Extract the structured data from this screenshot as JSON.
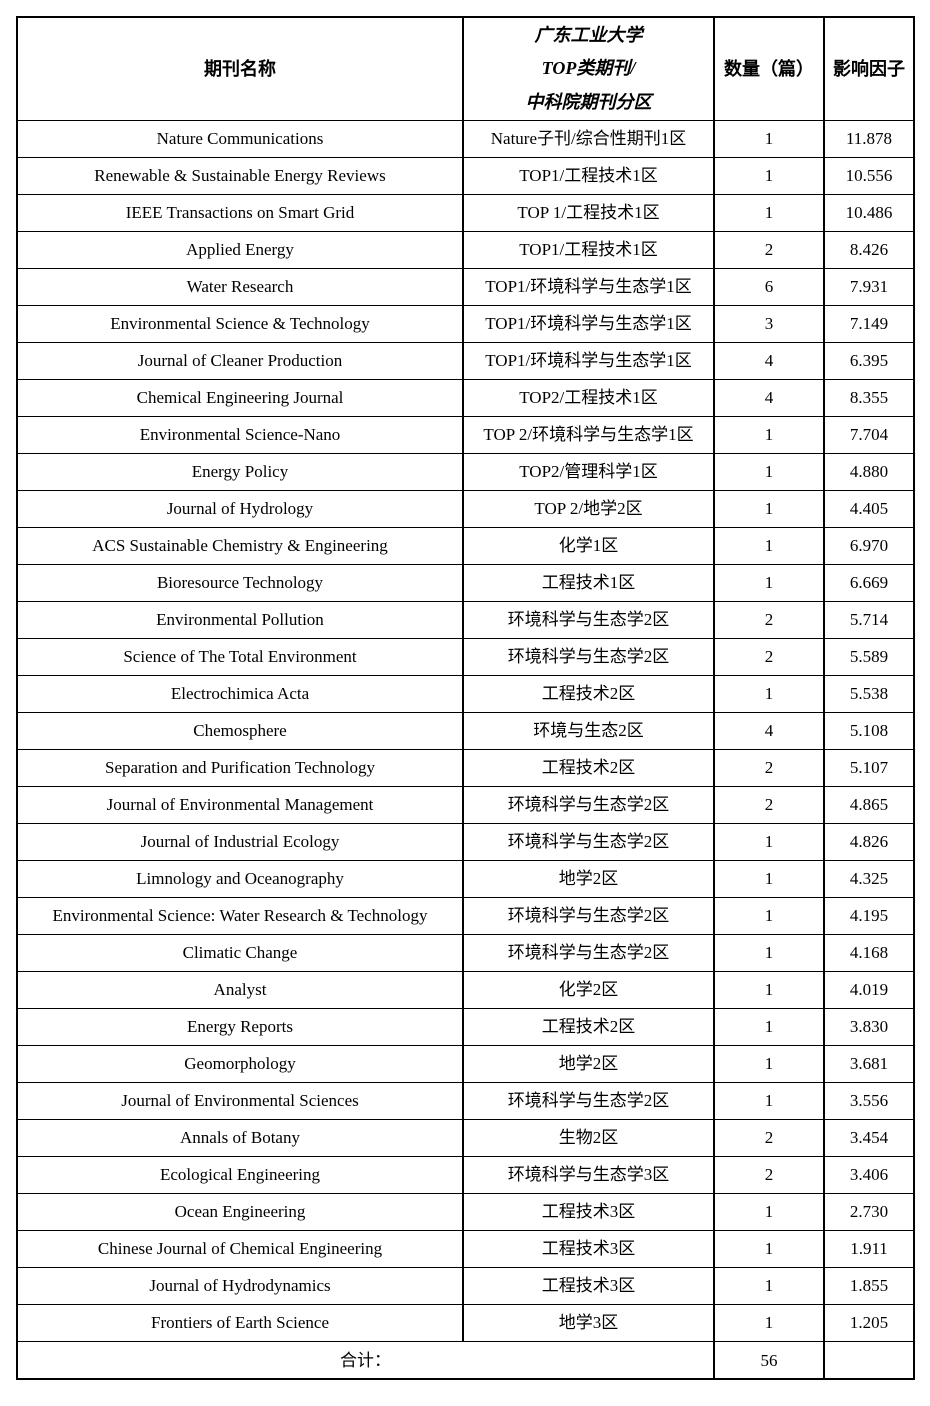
{
  "table": {
    "header": {
      "col_name": "期刊名称",
      "col_category_lines": [
        "广东工业大学",
        "TOP类期刊/",
        "中科院期刊分区"
      ],
      "col_count": "数量（篇）",
      "col_impact": "影响因子"
    },
    "rows": [
      {
        "name": "Nature Communications",
        "category": "Nature子刊/综合性期刊1区",
        "count": "1",
        "impact": "11.878"
      },
      {
        "name": "Renewable & Sustainable Energy Reviews",
        "category": "TOP1/工程技术1区",
        "count": "1",
        "impact": "10.556"
      },
      {
        "name": "IEEE Transactions on Smart Grid",
        "category": "TOP 1/工程技术1区",
        "count": "1",
        "impact": "10.486"
      },
      {
        "name": "Applied Energy",
        "category": "TOP1/工程技术1区",
        "count": "2",
        "impact": "8.426"
      },
      {
        "name": "Water Research",
        "category": "TOP1/环境科学与生态学1区",
        "count": "6",
        "impact": "7.931"
      },
      {
        "name": "Environmental Science & Technology",
        "category": "TOP1/环境科学与生态学1区",
        "count": "3",
        "impact": "7.149"
      },
      {
        "name": "Journal of Cleaner Production",
        "category": "TOP1/环境科学与生态学1区",
        "count": "4",
        "impact": "6.395"
      },
      {
        "name": "Chemical Engineering Journal",
        "category": "TOP2/工程技术1区",
        "count": "4",
        "impact": "8.355"
      },
      {
        "name": "Environmental Science-Nano",
        "category": "TOP 2/环境科学与生态学1区",
        "count": "1",
        "impact": "7.704"
      },
      {
        "name": "Energy Policy",
        "category": "TOP2/管理科学1区",
        "count": "1",
        "impact": "4.880"
      },
      {
        "name": "Journal of Hydrology",
        "category": "TOP 2/地学2区",
        "count": "1",
        "impact": "4.405"
      },
      {
        "name": "ACS Sustainable Chemistry & Engineering",
        "category": "化学1区",
        "count": "1",
        "impact": "6.970"
      },
      {
        "name": "Bioresource Technology",
        "category": "工程技术1区",
        "count": "1",
        "impact": "6.669"
      },
      {
        "name": "Environmental Pollution",
        "category": "环境科学与生态学2区",
        "count": "2",
        "impact": "5.714"
      },
      {
        "name": "Science of The Total Environment",
        "category": "环境科学与生态学2区",
        "count": "2",
        "impact": "5.589"
      },
      {
        "name": "Electrochimica Acta",
        "category": "工程技术2区",
        "count": "1",
        "impact": "5.538"
      },
      {
        "name": "Chemosphere",
        "category": "环境与生态2区",
        "count": "4",
        "impact": "5.108"
      },
      {
        "name": "Separation and Purification Technology",
        "category": "工程技术2区",
        "count": "2",
        "impact": "5.107"
      },
      {
        "name": "Journal of Environmental Management",
        "category": "环境科学与生态学2区",
        "count": "2",
        "impact": "4.865"
      },
      {
        "name": "Journal of Industrial Ecology",
        "category": "环境科学与生态学2区",
        "count": "1",
        "impact": "4.826"
      },
      {
        "name": "Limnology and Oceanography",
        "category": "地学2区",
        "count": "1",
        "impact": "4.325"
      },
      {
        "name": "Environmental Science: Water Research & Technology",
        "category": "环境科学与生态学2区",
        "count": "1",
        "impact": "4.195"
      },
      {
        "name": "Climatic Change",
        "category": "环境科学与生态学2区",
        "count": "1",
        "impact": "4.168"
      },
      {
        "name": "Analyst",
        "category": "化学2区",
        "count": "1",
        "impact": "4.019"
      },
      {
        "name": "Energy Reports",
        "category": "工程技术2区",
        "count": "1",
        "impact": "3.830"
      },
      {
        "name": "Geomorphology",
        "category": "地学2区",
        "count": "1",
        "impact": "3.681"
      },
      {
        "name": "Journal of Environmental Sciences",
        "category": "环境科学与生态学2区",
        "count": "1",
        "impact": "3.556"
      },
      {
        "name": "Annals of Botany",
        "category": "生物2区",
        "count": "2",
        "impact": "3.454"
      },
      {
        "name": "Ecological Engineering",
        "category": "环境科学与生态学3区",
        "count": "2",
        "impact": "3.406"
      },
      {
        "name": "Ocean Engineering",
        "category": "工程技术3区",
        "count": "1",
        "impact": "2.730"
      },
      {
        "name": "Chinese Journal of Chemical Engineering",
        "category": "工程技术3区",
        "count": "1",
        "impact": "1.911"
      },
      {
        "name": "Journal of Hydrodynamics",
        "category": "工程技术3区",
        "count": "1",
        "impact": "1.855"
      },
      {
        "name": "Frontiers of Earth Science",
        "category": "地学3区",
        "count": "1",
        "impact": "1.205"
      }
    ],
    "total": {
      "label": "合计：",
      "count": "56",
      "impact": ""
    }
  }
}
